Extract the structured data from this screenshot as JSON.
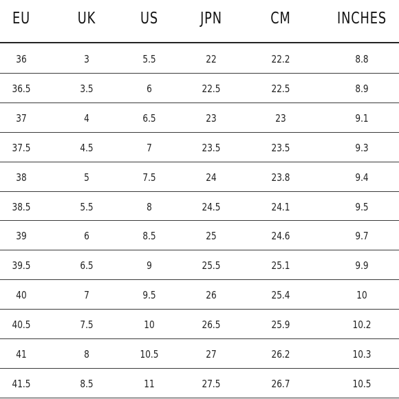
{
  "table": {
    "headers": [
      "EU",
      "UK",
      "US",
      "JPN",
      "CM",
      "INCHES"
    ],
    "rows": [
      [
        "36",
        "3",
        "5.5",
        "22",
        "22.2",
        "8.8"
      ],
      [
        "36.5",
        "3.5",
        "6",
        "22.5",
        "22.5",
        "8.9"
      ],
      [
        "37",
        "4",
        "6.5",
        "23",
        "23",
        "9.1"
      ],
      [
        "37.5",
        "4.5",
        "7",
        "23.5",
        "23.5",
        "9.3"
      ],
      [
        "38",
        "5",
        "7.5",
        "24",
        "23.8",
        "9.4"
      ],
      [
        "38.5",
        "5.5",
        "8",
        "24.5",
        "24.1",
        "9.5"
      ],
      [
        "39",
        "6",
        "8.5",
        "25",
        "24.6",
        "9.7"
      ],
      [
        "39.5",
        "6.5",
        "9",
        "25.5",
        "25.1",
        "9.9"
      ],
      [
        "40",
        "7",
        "9.5",
        "26",
        "25.4",
        "10"
      ],
      [
        "40.5",
        "7.5",
        "10",
        "26.5",
        "25.9",
        "10.2"
      ],
      [
        "41",
        "8",
        "10.5",
        "27",
        "26.2",
        "10.3"
      ],
      [
        "41.5",
        "8.5",
        "11",
        "27.5",
        "26.7",
        "10.5"
      ]
    ]
  }
}
